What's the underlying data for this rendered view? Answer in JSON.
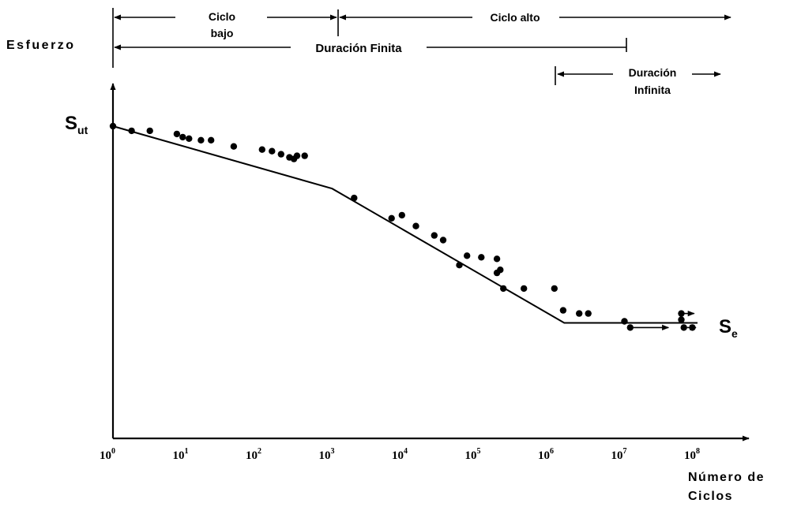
{
  "chart_data": {
    "type": "scatter",
    "title": "",
    "ylabel": "Esfuerzo",
    "xlabel_line1": "Número de",
    "xlabel_line2": "Ciclos",
    "x_scale": "log",
    "xlim": [
      1,
      100000000
    ],
    "x_ticks": [
      {
        "base": "10",
        "exp": "0",
        "value": 1
      },
      {
        "base": "10",
        "exp": "1",
        "value": 10
      },
      {
        "base": "10",
        "exp": "2",
        "value": 100
      },
      {
        "base": "10",
        "exp": "3",
        "value": 1000
      },
      {
        "base": "10",
        "exp": "4",
        "value": 10000
      },
      {
        "base": "10",
        "exp": "5",
        "value": 100000
      },
      {
        "base": "10",
        "exp": "6",
        "value": 1000000
      },
      {
        "base": "10",
        "exp": "7",
        "value": 10000000
      },
      {
        "base": "10",
        "exp": "8",
        "value": 100000000
      }
    ],
    "y_labels": {
      "sut_main": "S",
      "sut_sub": "ut",
      "se_main": "S",
      "se_sub": "e"
    },
    "fit_line": [
      [
        1,
        1.0
      ],
      [
        1000,
        0.8
      ],
      [
        1500000,
        0.37
      ],
      [
        100000000,
        0.37
      ]
    ],
    "points": [
      [
        1,
        1.0
      ],
      [
        1.8,
        0.985
      ],
      [
        3.2,
        0.985
      ],
      [
        7.5,
        0.975
      ],
      [
        9,
        0.965
      ],
      [
        11,
        0.96
      ],
      [
        16,
        0.955
      ],
      [
        22,
        0.955
      ],
      [
        45,
        0.935
      ],
      [
        110,
        0.925
      ],
      [
        150,
        0.92
      ],
      [
        200,
        0.91
      ],
      [
        260,
        0.9
      ],
      [
        300,
        0.895
      ],
      [
        330,
        0.905
      ],
      [
        420,
        0.905
      ],
      [
        2000,
        0.77
      ],
      [
        6500,
        0.705
      ],
      [
        9000,
        0.715
      ],
      [
        14000,
        0.68
      ],
      [
        25000,
        0.65
      ],
      [
        33000,
        0.635
      ],
      [
        70000,
        0.585
      ],
      [
        110000,
        0.58
      ],
      [
        55000,
        0.555
      ],
      [
        180000,
        0.575
      ],
      [
        180000,
        0.53
      ],
      [
        200000,
        0.54
      ],
      [
        220000,
        0.48
      ],
      [
        420000,
        0.48
      ],
      [
        1100000,
        0.48
      ],
      [
        1450000,
        0.41
      ],
      [
        2400000,
        0.4
      ],
      [
        3200000,
        0.4
      ],
      [
        10000000,
        0.375
      ],
      [
        60000000,
        0.38
      ],
      [
        85000000,
        0.355
      ]
    ],
    "runouts": [
      {
        "from": 60000000,
        "to": 90000000,
        "y": 0.4
      },
      {
        "from": 12000000,
        "to": 40000000,
        "y": 0.355
      },
      {
        "from": 65000000,
        "to": 95000000,
        "y": 0.355
      }
    ]
  },
  "annotations": {
    "ciclo_bajo_1": "Ciclo",
    "ciclo_bajo_2": "bajo",
    "ciclo_alto": "Ciclo alto",
    "duracion_finita": "Duración Finita",
    "duracion_infinita_1": "Duración",
    "duracion_infinita_2": "Infinita"
  }
}
